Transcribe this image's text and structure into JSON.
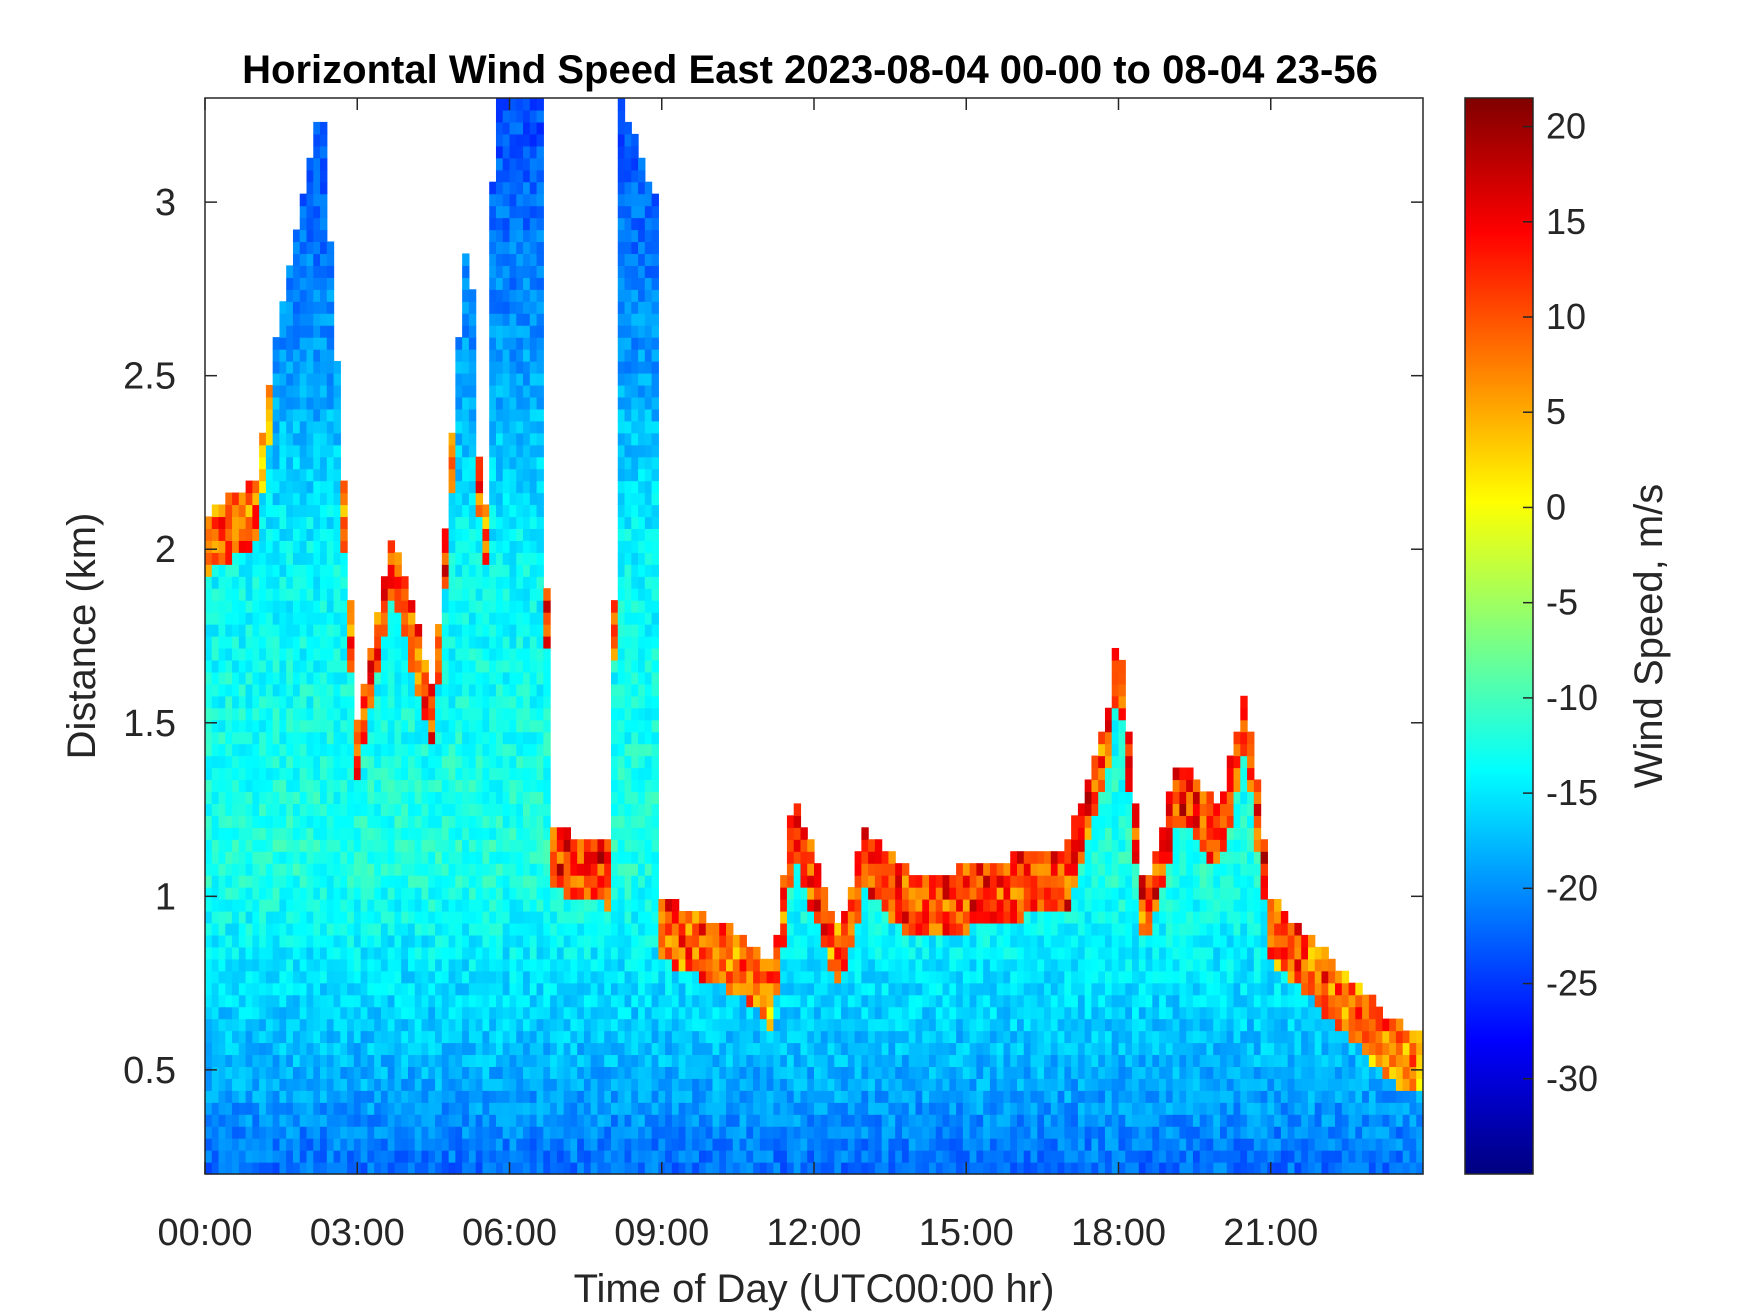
{
  "chart_data": {
    "type": "heatmap",
    "title": "Horizontal Wind Speed East 2023-08-04 00-00 to 08-04 23-56",
    "xlabel": "Time of Day (UTC00:00 hr)",
    "ylabel": "Distance (km)",
    "x_range_hours": [
      0,
      24
    ],
    "y_range_km": [
      0.2,
      3.3
    ],
    "x_ticks": [
      {
        "hour": 0,
        "label": "00:00"
      },
      {
        "hour": 3,
        "label": "03:00"
      },
      {
        "hour": 6,
        "label": "06:00"
      },
      {
        "hour": 9,
        "label": "09:00"
      },
      {
        "hour": 12,
        "label": "12:00"
      },
      {
        "hour": 15,
        "label": "15:00"
      },
      {
        "hour": 18,
        "label": "18:00"
      },
      {
        "hour": 21,
        "label": "21:00"
      }
    ],
    "y_ticks": [
      {
        "value": 0.5,
        "label": "0.5"
      },
      {
        "value": 1,
        "label": "1"
      },
      {
        "value": 1.5,
        "label": "1.5"
      },
      {
        "value": 2,
        "label": "2"
      },
      {
        "value": 2.5,
        "label": "2.5"
      },
      {
        "value": 3,
        "label": "3"
      }
    ],
    "colorbar": {
      "label": "Wind Speed, m/s",
      "range": [
        -35,
        21.5
      ],
      "colormap": "jet",
      "ticks": [
        {
          "value": 20,
          "label": "20"
        },
        {
          "value": 15,
          "label": "15"
        },
        {
          "value": 10,
          "label": "10"
        },
        {
          "value": 5,
          "label": "5"
        },
        {
          "value": 0,
          "label": "0"
        },
        {
          "value": -5,
          "label": "-5"
        },
        {
          "value": -10,
          "label": "-10"
        },
        {
          "value": -15,
          "label": "-15"
        },
        {
          "value": -20,
          "label": "-20"
        },
        {
          "value": -25,
          "label": "-25"
        },
        {
          "value": -30,
          "label": "-30"
        }
      ]
    },
    "data_top_km_by_hour": [
      {
        "hour": 0.0,
        "top_km": 2.1
      },
      {
        "hour": 1.0,
        "top_km": 2.2
      },
      {
        "hour": 1.5,
        "top_km": 2.7
      },
      {
        "hour": 2.3,
        "top_km": 3.3
      },
      {
        "hour": 3.0,
        "top_km": 1.5
      },
      {
        "hour": 3.7,
        "top_km": 2.05
      },
      {
        "hour": 4.5,
        "top_km": 1.6
      },
      {
        "hour": 5.2,
        "top_km": 3.0
      },
      {
        "hour": 5.5,
        "top_km": 1.9
      },
      {
        "hour": 5.7,
        "top_km": 3.3
      },
      {
        "hour": 6.6,
        "top_km": 3.3
      },
      {
        "hour": 6.8,
        "top_km": 1.2
      },
      {
        "hour": 8.0,
        "top_km": 1.15
      },
      {
        "hour": 8.2,
        "top_km": 3.3
      },
      {
        "hour": 8.9,
        "top_km": 3.0
      },
      {
        "hour": 9.0,
        "top_km": 1.0
      },
      {
        "hour": 10.5,
        "top_km": 0.9
      },
      {
        "hour": 11.2,
        "top_km": 0.8
      },
      {
        "hour": 11.6,
        "top_km": 1.3
      },
      {
        "hour": 12.5,
        "top_km": 0.9
      },
      {
        "hour": 13.0,
        "top_km": 1.2
      },
      {
        "hour": 14.0,
        "top_km": 1.05
      },
      {
        "hour": 15.5,
        "top_km": 1.1
      },
      {
        "hour": 17.0,
        "top_km": 1.15
      },
      {
        "hour": 17.8,
        "top_km": 1.55
      },
      {
        "hour": 18.0,
        "top_km": 1.8
      },
      {
        "hour": 18.5,
        "top_km": 1.0
      },
      {
        "hour": 19.2,
        "top_km": 1.4
      },
      {
        "hour": 20.0,
        "top_km": 1.25
      },
      {
        "hour": 20.5,
        "top_km": 1.6
      },
      {
        "hour": 21.0,
        "top_km": 1.0
      },
      {
        "hour": 22.0,
        "top_km": 0.85
      },
      {
        "hour": 22.7,
        "top_km": 0.75
      },
      {
        "hour": 23.3,
        "top_km": 0.65
      },
      {
        "hour": 24.0,
        "top_km": 0.6
      }
    ],
    "prevailing_speed_by_height": [
      {
        "km": 0.2,
        "ms": -22
      },
      {
        "km": 0.5,
        "ms": -18
      },
      {
        "km": 0.8,
        "ms": -15
      },
      {
        "km": 1.1,
        "ms": -12
      },
      {
        "km": 1.5,
        "ms": -13
      },
      {
        "km": 2.0,
        "ms": -14
      },
      {
        "km": 2.5,
        "ms": -19
      },
      {
        "km": 3.3,
        "ms": -24
      }
    ]
  }
}
